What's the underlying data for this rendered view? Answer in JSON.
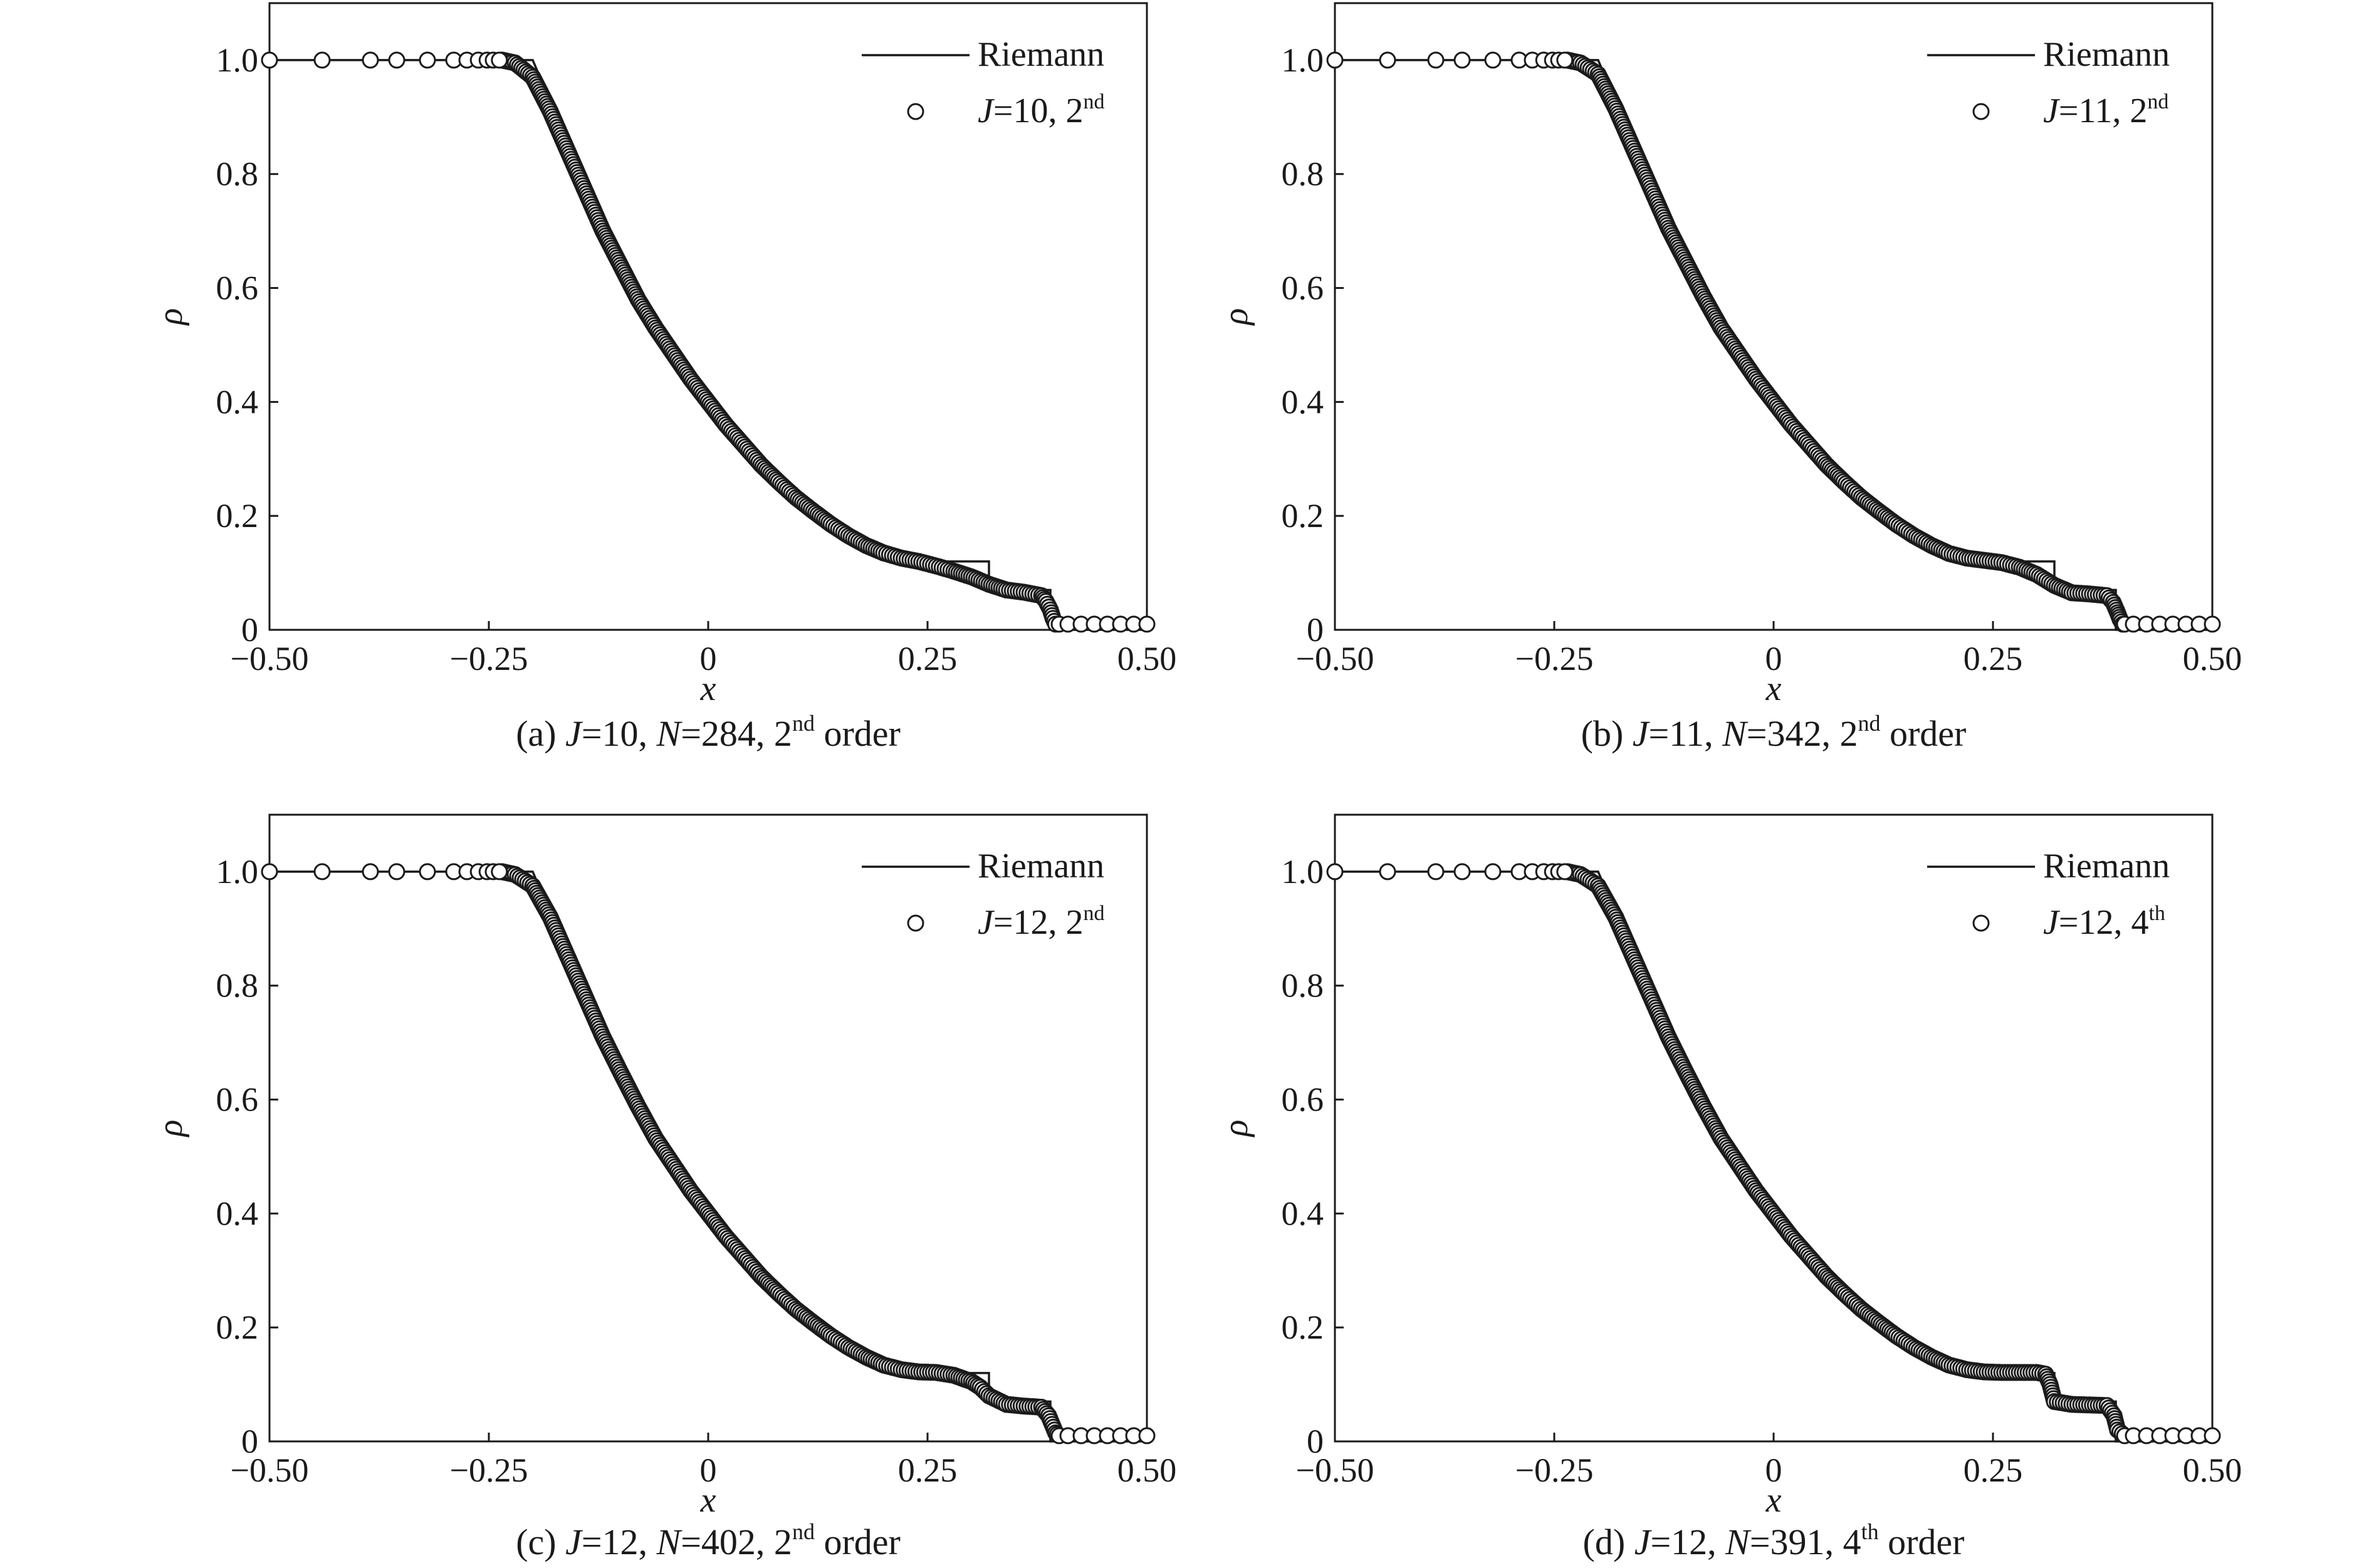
{
  "chart_data": [
    {
      "type": "scatter",
      "panel": "a",
      "caption": {
        "prefix": "(a) ",
        "j_sym": "J",
        "j_val": "=10, ",
        "n_sym": "N",
        "n_val": "=284, 2",
        "sup": "nd",
        "suffix": " order"
      },
      "xlabel": "x",
      "ylabel": "ρ",
      "xlim": [
        -0.5,
        0.5
      ],
      "ylim": [
        0,
        1.1
      ],
      "xticks": [
        -0.5,
        -0.25,
        0,
        0.25,
        0.5
      ],
      "xtick_labels": [
        "−0.50",
        "−0.25",
        "0",
        "0.25",
        "0.50"
      ],
      "yticks": [
        0,
        0.2,
        0.4,
        0.6,
        0.8,
        1.0
      ],
      "ytick_labels": [
        "0",
        "0.2",
        "0.4",
        "0.6",
        "0.8",
        "1.0"
      ],
      "grid": false,
      "legend_position": "top-right",
      "legend": {
        "line_label": "Riemann",
        "marker_sym": "J",
        "marker_val": "=10, 2",
        "marker_sup": "nd"
      },
      "riemann": {
        "x": [
          -0.5,
          -0.2,
          -0.15,
          -0.1,
          -0.05,
          0.0,
          0.05,
          0.1,
          0.15,
          0.2,
          0.243,
          0.32,
          0.32,
          0.39,
          0.39,
          0.5
        ],
        "y": [
          1.0,
          1.0,
          0.82,
          0.65,
          0.51,
          0.4,
          0.31,
          0.24,
          0.18,
          0.145,
          0.12,
          0.12,
          0.07,
          0.07,
          0.0,
          0.0
        ]
      },
      "sample_x": [
        -0.5,
        -0.44,
        -0.385,
        -0.355,
        -0.32,
        -0.29,
        -0.275,
        -0.262,
        -0.252,
        -0.245,
        -0.238
      ],
      "sample_y": [
        1.0,
        1.0,
        1.0,
        1.0,
        1.0,
        1.0,
        1.0,
        1.0,
        1.0,
        1.0,
        1.0
      ],
      "curve": {
        "x": [
          -0.235,
          -0.22,
          -0.2,
          -0.18,
          -0.16,
          -0.14,
          -0.12,
          -0.1,
          -0.08,
          -0.06,
          -0.04,
          -0.02,
          0.0,
          0.02,
          0.04,
          0.06,
          0.08,
          0.1,
          0.12,
          0.14,
          0.16,
          0.18,
          0.2,
          0.22,
          0.24,
          0.26,
          0.28,
          0.3,
          0.32,
          0.34,
          0.36,
          0.38,
          0.385,
          0.39,
          0.393,
          0.396,
          0.4
        ],
        "y": [
          1.0,
          0.995,
          0.97,
          0.91,
          0.84,
          0.77,
          0.7,
          0.64,
          0.58,
          0.53,
          0.485,
          0.44,
          0.4,
          0.36,
          0.325,
          0.29,
          0.26,
          0.232,
          0.208,
          0.185,
          0.165,
          0.148,
          0.135,
          0.126,
          0.12,
          0.112,
          0.103,
          0.093,
          0.08,
          0.07,
          0.066,
          0.06,
          0.05,
          0.035,
          0.02,
          0.01,
          0.01
        ]
      },
      "tail_x": [
        0.41,
        0.425,
        0.44,
        0.455,
        0.47,
        0.485,
        0.5
      ],
      "tail_y": [
        0.01,
        0.01,
        0.01,
        0.01,
        0.01,
        0.01,
        0.01
      ]
    },
    {
      "type": "scatter",
      "panel": "b",
      "caption": {
        "prefix": "(b) ",
        "j_sym": "J",
        "j_val": "=11, ",
        "n_sym": "N",
        "n_val": "=342, 2",
        "sup": "nd",
        "suffix": " order"
      },
      "xlabel": "x",
      "ylabel": "ρ",
      "xlim": [
        -0.5,
        0.5
      ],
      "ylim": [
        0,
        1.1
      ],
      "xticks": [
        -0.5,
        -0.25,
        0,
        0.25,
        0.5
      ],
      "xtick_labels": [
        "−0.50",
        "−0.25",
        "0",
        "0.25",
        "0.50"
      ],
      "yticks": [
        0,
        0.2,
        0.4,
        0.6,
        0.8,
        1.0
      ],
      "ytick_labels": [
        "0",
        "0.2",
        "0.4",
        "0.6",
        "0.8",
        "1.0"
      ],
      "grid": false,
      "legend_position": "top-right",
      "legend": {
        "line_label": "Riemann",
        "marker_sym": "J",
        "marker_val": "=11, 2",
        "marker_sup": "nd"
      },
      "riemann": {
        "x": [
          -0.5,
          -0.2,
          -0.15,
          -0.1,
          -0.05,
          0.0,
          0.05,
          0.1,
          0.15,
          0.2,
          0.243,
          0.32,
          0.32,
          0.39,
          0.39,
          0.5
        ],
        "y": [
          1.0,
          1.0,
          0.82,
          0.65,
          0.51,
          0.4,
          0.31,
          0.24,
          0.18,
          0.145,
          0.12,
          0.12,
          0.07,
          0.07,
          0.0,
          0.0
        ]
      },
      "sample_x": [
        -0.5,
        -0.44,
        -0.385,
        -0.355,
        -0.32,
        -0.29,
        -0.275,
        -0.262,
        -0.252,
        -0.245,
        -0.238
      ],
      "sample_y": [
        1.0,
        1.0,
        1.0,
        1.0,
        1.0,
        1.0,
        1.0,
        1.0,
        1.0,
        1.0,
        1.0
      ],
      "curve": {
        "x": [
          -0.235,
          -0.22,
          -0.2,
          -0.18,
          -0.16,
          -0.14,
          -0.12,
          -0.1,
          -0.08,
          -0.06,
          -0.04,
          -0.02,
          0.0,
          0.02,
          0.04,
          0.06,
          0.08,
          0.1,
          0.12,
          0.14,
          0.16,
          0.18,
          0.2,
          0.22,
          0.24,
          0.26,
          0.28,
          0.3,
          0.32,
          0.34,
          0.36,
          0.38,
          0.387,
          0.392,
          0.395,
          0.398,
          0.4
        ],
        "y": [
          1.0,
          0.995,
          0.975,
          0.915,
          0.845,
          0.775,
          0.705,
          0.645,
          0.585,
          0.53,
          0.485,
          0.44,
          0.4,
          0.36,
          0.325,
          0.29,
          0.26,
          0.232,
          0.208,
          0.185,
          0.165,
          0.148,
          0.134,
          0.126,
          0.122,
          0.118,
          0.11,
          0.097,
          0.078,
          0.065,
          0.063,
          0.06,
          0.048,
          0.03,
          0.018,
          0.01,
          0.01
        ]
      },
      "tail_x": [
        0.41,
        0.425,
        0.44,
        0.455,
        0.47,
        0.485,
        0.5
      ],
      "tail_y": [
        0.01,
        0.01,
        0.01,
        0.01,
        0.01,
        0.01,
        0.01
      ]
    },
    {
      "type": "scatter",
      "panel": "c",
      "caption": {
        "prefix": "(c) ",
        "j_sym": "J",
        "j_val": "=12, ",
        "n_sym": "N",
        "n_val": "=402, 2",
        "sup": "nd",
        "suffix": " order"
      },
      "xlabel": "x",
      "ylabel": "ρ",
      "xlim": [
        -0.5,
        0.5
      ],
      "ylim": [
        0,
        1.1
      ],
      "xticks": [
        -0.5,
        -0.25,
        0,
        0.25,
        0.5
      ],
      "xtick_labels": [
        "−0.50",
        "−0.25",
        "0",
        "0.25",
        "0.50"
      ],
      "yticks": [
        0,
        0.2,
        0.4,
        0.6,
        0.8,
        1.0
      ],
      "ytick_labels": [
        "0",
        "0.2",
        "0.4",
        "0.6",
        "0.8",
        "1.0"
      ],
      "grid": false,
      "legend_position": "top-right",
      "legend": {
        "line_label": "Riemann",
        "marker_sym": "J",
        "marker_val": "=12, 2",
        "marker_sup": "nd"
      },
      "riemann": {
        "x": [
          -0.5,
          -0.2,
          -0.15,
          -0.1,
          -0.05,
          0.0,
          0.05,
          0.1,
          0.15,
          0.2,
          0.243,
          0.32,
          0.32,
          0.39,
          0.39,
          0.5
        ],
        "y": [
          1.0,
          1.0,
          0.82,
          0.65,
          0.51,
          0.4,
          0.31,
          0.24,
          0.18,
          0.145,
          0.12,
          0.12,
          0.07,
          0.07,
          0.0,
          0.0
        ]
      },
      "sample_x": [
        -0.5,
        -0.44,
        -0.385,
        -0.355,
        -0.32,
        -0.29,
        -0.275,
        -0.262,
        -0.252,
        -0.245,
        -0.238
      ],
      "sample_y": [
        1.0,
        1.0,
        1.0,
        1.0,
        1.0,
        1.0,
        1.0,
        1.0,
        1.0,
        1.0,
        1.0
      ],
      "curve": {
        "x": [
          -0.235,
          -0.22,
          -0.2,
          -0.18,
          -0.16,
          -0.14,
          -0.12,
          -0.1,
          -0.08,
          -0.06,
          -0.04,
          -0.02,
          0.0,
          0.02,
          0.04,
          0.06,
          0.08,
          0.1,
          0.12,
          0.14,
          0.16,
          0.18,
          0.2,
          0.22,
          0.24,
          0.26,
          0.28,
          0.3,
          0.31,
          0.32,
          0.34,
          0.36,
          0.38,
          0.388,
          0.392,
          0.396,
          0.4
        ],
        "y": [
          1.0,
          0.995,
          0.975,
          0.92,
          0.85,
          0.78,
          0.71,
          0.648,
          0.588,
          0.532,
          0.486,
          0.44,
          0.4,
          0.36,
          0.325,
          0.29,
          0.26,
          0.232,
          0.208,
          0.185,
          0.165,
          0.148,
          0.134,
          0.126,
          0.122,
          0.121,
          0.116,
          0.105,
          0.095,
          0.08,
          0.065,
          0.062,
          0.06,
          0.045,
          0.03,
          0.015,
          0.01
        ]
      },
      "tail_x": [
        0.41,
        0.425,
        0.44,
        0.455,
        0.47,
        0.485,
        0.5
      ],
      "tail_y": [
        0.01,
        0.01,
        0.01,
        0.01,
        0.01,
        0.01,
        0.01
      ]
    },
    {
      "type": "scatter",
      "panel": "d",
      "caption": {
        "prefix": "(d) ",
        "j_sym": "J",
        "j_val": "=12, ",
        "n_sym": "N",
        "n_val": "=391, 4",
        "sup": "th",
        "suffix": " order"
      },
      "xlabel": "x",
      "ylabel": "ρ",
      "xlim": [
        -0.5,
        0.5
      ],
      "ylim": [
        0,
        1.1
      ],
      "xticks": [
        -0.5,
        -0.25,
        0,
        0.25,
        0.5
      ],
      "xtick_labels": [
        "−0.50",
        "−0.25",
        "0",
        "0.25",
        "0.50"
      ],
      "yticks": [
        0,
        0.2,
        0.4,
        0.6,
        0.8,
        1.0
      ],
      "ytick_labels": [
        "0",
        "0.2",
        "0.4",
        "0.6",
        "0.8",
        "1.0"
      ],
      "grid": false,
      "legend_position": "top-right",
      "legend": {
        "line_label": "Riemann",
        "marker_sym": "J",
        "marker_val": "=12, 4",
        "marker_sup": "th"
      },
      "riemann": {
        "x": [
          -0.5,
          -0.2,
          -0.15,
          -0.1,
          -0.05,
          0.0,
          0.05,
          0.1,
          0.15,
          0.2,
          0.243,
          0.32,
          0.32,
          0.39,
          0.39,
          0.5
        ],
        "y": [
          1.0,
          1.0,
          0.82,
          0.65,
          0.51,
          0.4,
          0.31,
          0.24,
          0.18,
          0.145,
          0.12,
          0.12,
          0.07,
          0.07,
          0.0,
          0.0
        ]
      },
      "sample_x": [
        -0.5,
        -0.44,
        -0.385,
        -0.355,
        -0.32,
        -0.29,
        -0.275,
        -0.262,
        -0.252,
        -0.245,
        -0.238
      ],
      "sample_y": [
        1.0,
        1.0,
        1.0,
        1.0,
        1.0,
        1.0,
        1.0,
        1.0,
        1.0,
        1.0,
        1.0
      ],
      "curve": {
        "x": [
          -0.235,
          -0.22,
          -0.2,
          -0.18,
          -0.16,
          -0.14,
          -0.12,
          -0.1,
          -0.08,
          -0.06,
          -0.04,
          -0.02,
          0.0,
          0.02,
          0.04,
          0.06,
          0.08,
          0.1,
          0.12,
          0.14,
          0.16,
          0.18,
          0.2,
          0.22,
          0.24,
          0.26,
          0.28,
          0.3,
          0.31,
          0.315,
          0.32,
          0.34,
          0.36,
          0.38,
          0.388,
          0.392,
          0.4
        ],
        "y": [
          1.0,
          0.995,
          0.975,
          0.92,
          0.85,
          0.78,
          0.71,
          0.648,
          0.588,
          0.532,
          0.486,
          0.44,
          0.4,
          0.36,
          0.325,
          0.29,
          0.26,
          0.232,
          0.208,
          0.185,
          0.165,
          0.148,
          0.134,
          0.126,
          0.122,
          0.121,
          0.121,
          0.121,
          0.118,
          0.1,
          0.07,
          0.065,
          0.064,
          0.063,
          0.045,
          0.02,
          0.01
        ]
      },
      "tail_x": [
        0.41,
        0.425,
        0.44,
        0.455,
        0.47,
        0.485,
        0.5
      ],
      "tail_y": [
        0.01,
        0.01,
        0.01,
        0.01,
        0.01,
        0.01,
        0.01
      ]
    }
  ]
}
